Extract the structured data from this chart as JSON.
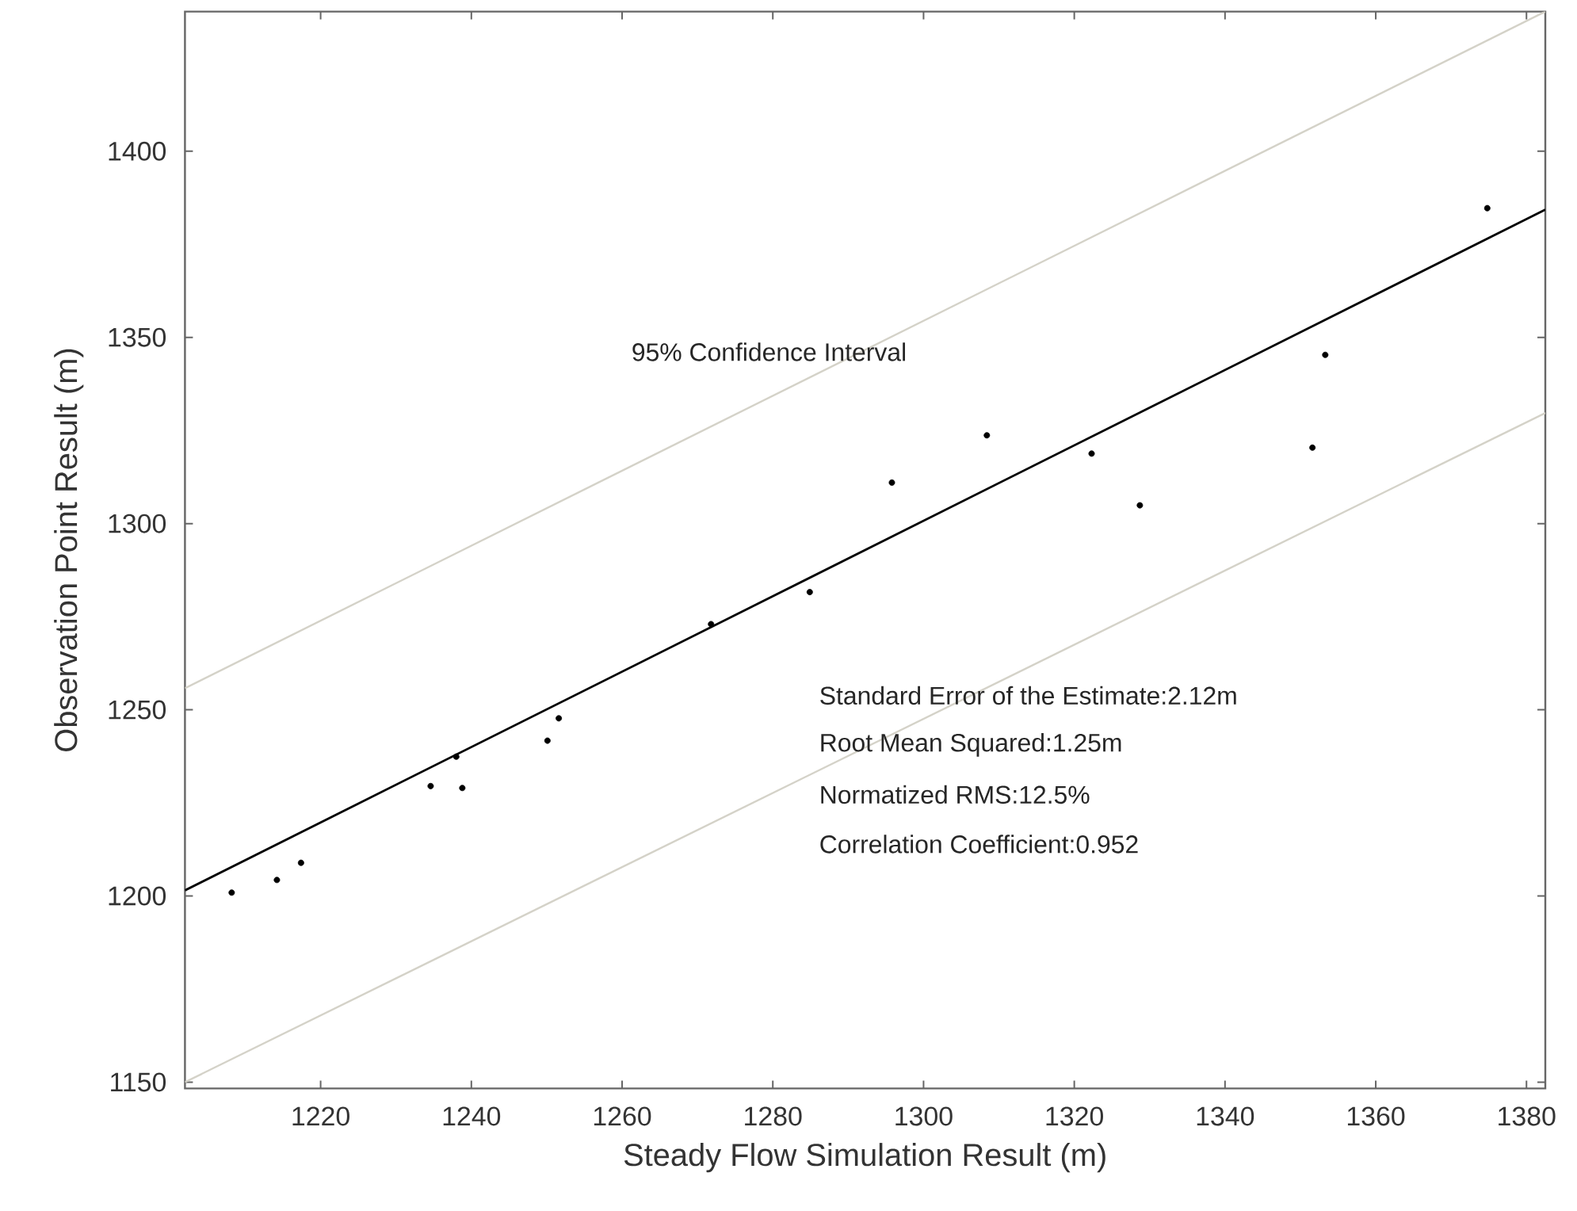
{
  "chart_data": {
    "type": "scatter",
    "xlabel": "Steady Flow Simulation Result (m)",
    "ylabel": "Observation Point Result (m)",
    "xlim": [
      1202,
      1382.5
    ],
    "ylim": [
      1148.3,
      1437.5
    ],
    "xticks": [
      1220,
      1240,
      1260,
      1280,
      1300,
      1320,
      1340,
      1360,
      1380
    ],
    "yticks": [
      1150,
      1200,
      1250,
      1300,
      1350,
      1400
    ],
    "grid": false,
    "series": [
      {
        "type": "line",
        "marker": "none",
        "color": "#d4d2c8",
        "x": [
          1202,
          1382.5
        ],
        "values": [
          1255.8,
          1437.5
        ]
      },
      {
        "type": "line",
        "marker": "none",
        "color": "#d4d2c8",
        "x": [
          1202,
          1382.5
        ],
        "values": [
          1150,
          1329.7
        ]
      },
      {
        "type": "line",
        "marker": "none",
        "color": "#000000",
        "x": [
          1202,
          1382.5
        ],
        "values": [
          1201.5,
          1384.3
        ]
      },
      {
        "marker": "circle",
        "color": "#000000",
        "x": [
          1208.2,
          1214.2,
          1217.4,
          1234.6,
          1238.0,
          1238.8,
          1250.1,
          1251.6,
          1271.8,
          1284.9,
          1295.8,
          1308.4,
          1322.3,
          1328.7,
          1351.6,
          1353.3,
          1374.8
        ],
        "values": [
          1200.9,
          1204.3,
          1208.9,
          1229.5,
          1237.4,
          1229.0,
          1241.7,
          1247.7,
          1273.0,
          1281.6,
          1311.0,
          1323.7,
          1318.8,
          1304.9,
          1320.4,
          1345.3,
          1384.7
        ]
      }
    ],
    "annotations": [
      "95% Confidence Interval",
      "Standard Error of the Estimate:2.12m",
      "Root Mean Squared:1.25m",
      "Normatized RMS:12.5%",
      "Correlation Coefficient:0.952"
    ]
  }
}
